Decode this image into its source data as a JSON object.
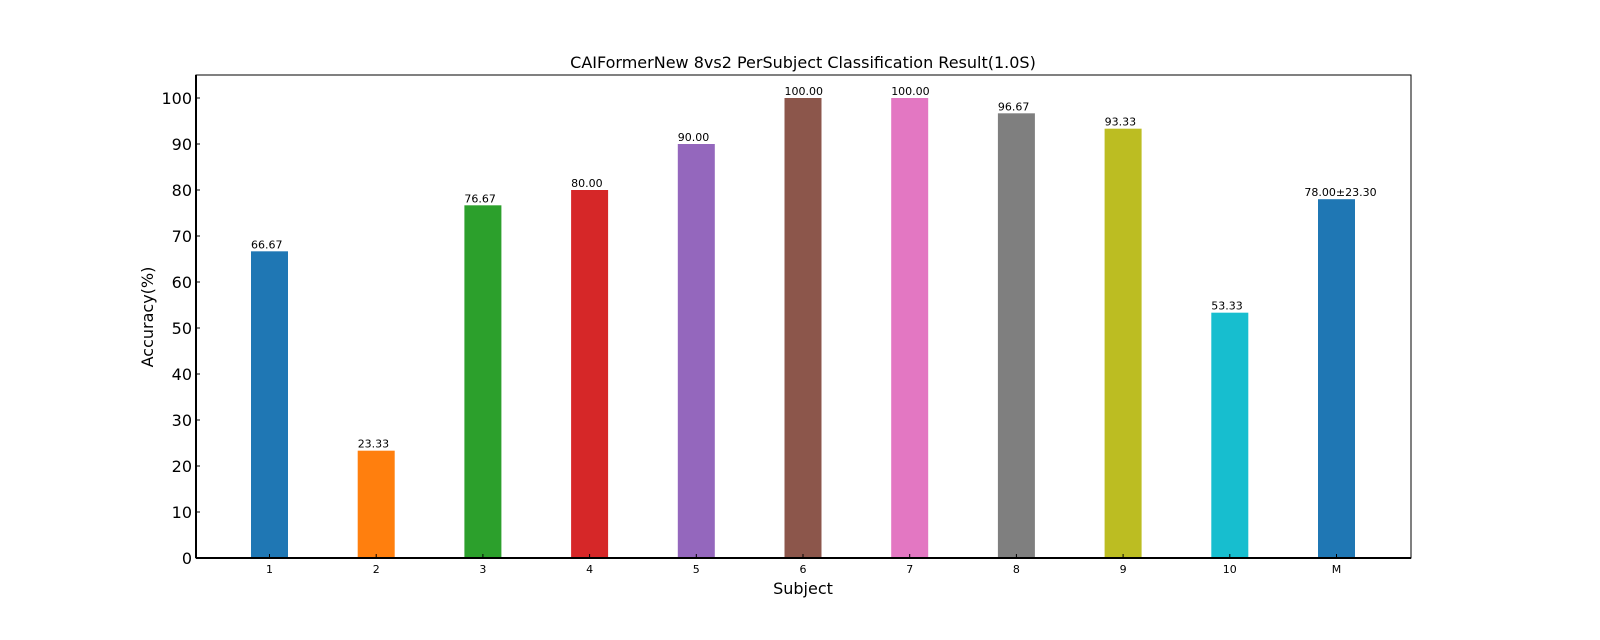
{
  "chart_data": {
    "type": "bar",
    "title": "CAIFormerNew 8vs2 PerSubject Classification Result(1.0S)",
    "xlabel": "Subject",
    "ylabel": "Accuracy(%)",
    "ylim": [
      0,
      105
    ],
    "yticks": [
      "0",
      "10",
      "20",
      "30",
      "40",
      "50",
      "60",
      "70",
      "80",
      "90",
      "100"
    ],
    "categories": [
      "1",
      "2",
      "3",
      "4",
      "5",
      "6",
      "7",
      "8",
      "9",
      "10",
      "M"
    ],
    "values": [
      66.67,
      23.33,
      76.67,
      80.0,
      90.0,
      100.0,
      100.0,
      96.67,
      93.33,
      53.33,
      78.0
    ],
    "value_labels": [
      "66.67",
      "23.33",
      "76.67",
      "80.00",
      "90.00",
      "100.00",
      "100.00",
      "96.67",
      "93.33",
      "53.33",
      "78.00±23.30"
    ],
    "colors": [
      "#1f77b4",
      "#ff7f0e",
      "#2ca02c",
      "#d62728",
      "#9467bd",
      "#8c564b",
      "#e377c2",
      "#7f7f7f",
      "#bcbd22",
      "#17becf",
      "#1f77b4"
    ],
    "label_colors": [
      "#000000",
      "#000000",
      "#000000",
      "#000000",
      "#000000",
      "#000000",
      "#000000",
      "#000000",
      "#000000",
      "#000000",
      "#ff0000"
    ],
    "grid": false,
    "legend": "none"
  }
}
